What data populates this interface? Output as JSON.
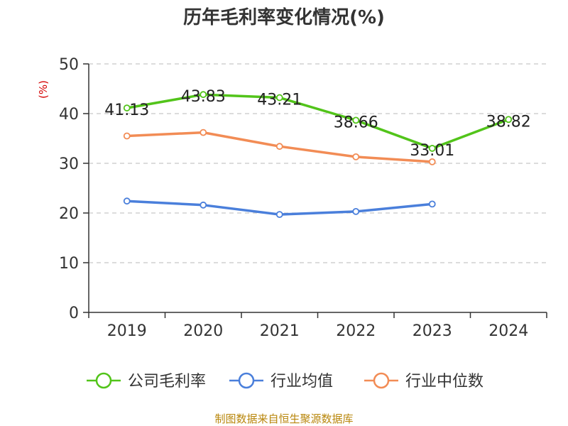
{
  "title": "历年毛利率变化情况(%)",
  "source": "制图数据来自恒生聚源数据库",
  "chart_data": {
    "type": "line",
    "title": "历年毛利率变化情况(%)",
    "xlabel": "",
    "ylabel": "(%)",
    "categories": [
      "2019",
      "2020",
      "2021",
      "2022",
      "2023",
      "2024"
    ],
    "ylim": [
      0,
      50
    ],
    "yticks": [
      0,
      10,
      20,
      30,
      40,
      50
    ],
    "grid": true,
    "legend_position": "bottom",
    "series": [
      {
        "name": "公司毛利率",
        "color": "#52c41a",
        "values": [
          41.13,
          43.83,
          43.21,
          38.66,
          33.01,
          38.82
        ],
        "labels": [
          "41.13",
          "43.83",
          "43.21",
          "38.66",
          "33.01",
          "38.82"
        ]
      },
      {
        "name": "行业均值",
        "color": "#4a7fdb",
        "values": [
          22.4,
          21.6,
          19.7,
          20.3,
          21.8,
          null
        ]
      },
      {
        "name": "行业中位数",
        "color": "#f28c55",
        "values": [
          35.5,
          36.2,
          33.4,
          31.3,
          30.3,
          null
        ]
      }
    ]
  }
}
